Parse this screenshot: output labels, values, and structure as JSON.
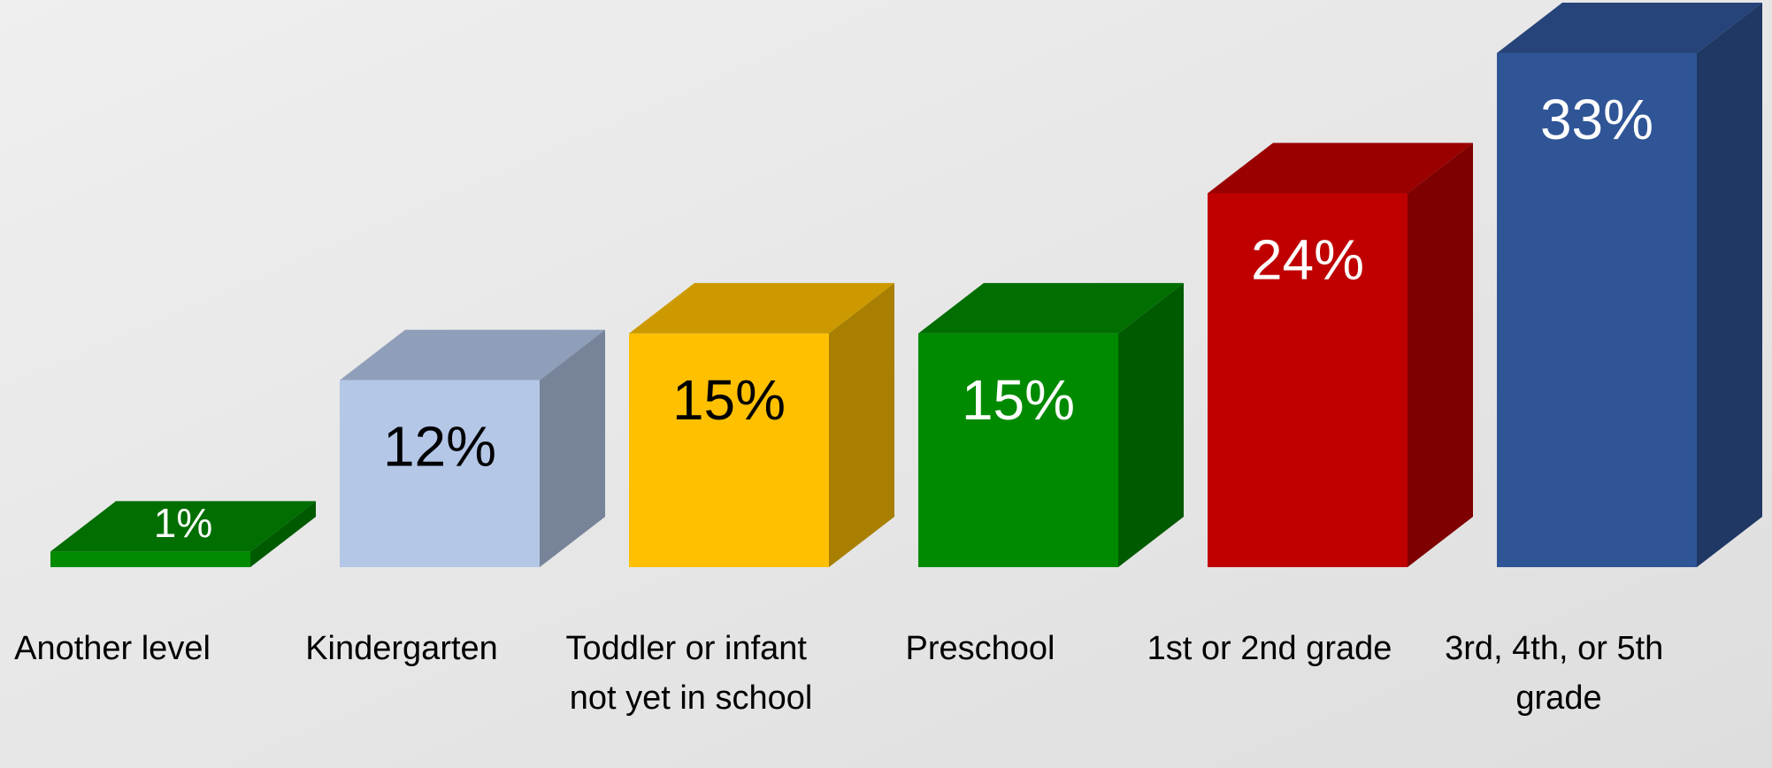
{
  "chart_data": {
    "type": "bar3d",
    "categories": [
      "Another level",
      "Kindergarten",
      "Toddler or infant not yet in school",
      "Preschool",
      "1st or 2nd grade",
      "3rd, 4th, or 5th grade"
    ],
    "values": [
      1,
      12,
      15,
      15,
      24,
      33
    ],
    "value_labels": [
      "1%",
      "12%",
      "15%",
      "15%",
      "24%",
      "33%"
    ],
    "colors": [
      "#008a00",
      "#b4c7e7",
      "#ffc000",
      "#008a00",
      "#c00000",
      "#2f5597"
    ],
    "label_colors": [
      "#ffffff",
      "#000000",
      "#000000",
      "#ffffff",
      "#ffffff",
      "#ffffff"
    ]
  }
}
